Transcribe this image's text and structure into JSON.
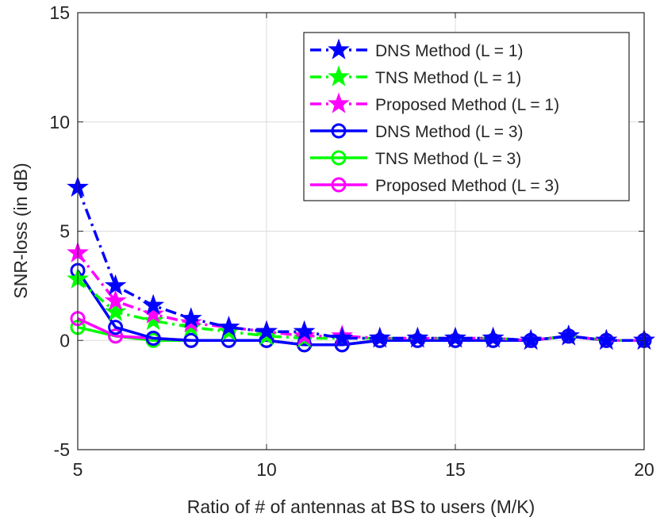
{
  "chart_data": {
    "type": "line",
    "xlabel": "Ratio of # of antennas at BS to users (M/K)",
    "ylabel": "SNR-loss (in dB)",
    "xlim": [
      5,
      20
    ],
    "ylim": [
      -5,
      15
    ],
    "xticks": [
      5,
      10,
      15,
      20
    ],
    "yticks": [
      -5,
      0,
      5,
      10,
      15
    ],
    "xtick_labels": [
      "5",
      "10",
      "15",
      "20"
    ],
    "ytick_labels": [
      "-5",
      "0",
      "5",
      "10",
      "15"
    ],
    "grid": true,
    "legend_position": "top-right",
    "x": [
      5,
      6,
      7,
      8,
      9,
      10,
      11,
      12,
      13,
      14,
      15,
      16,
      17,
      18,
      19,
      20
    ],
    "series": [
      {
        "name": "DNS Method (L = 1)",
        "color": "#0000ff",
        "line": "dashdot",
        "marker": "star",
        "values": [
          7.0,
          2.5,
          1.6,
          1.0,
          0.6,
          0.4,
          0.4,
          0.1,
          0.1,
          0.1,
          0.1,
          0.1,
          0.0,
          0.2,
          0.0,
          0.0
        ]
      },
      {
        "name": "TNS Method (L = 1)",
        "color": "#00ff00",
        "line": "dashdot",
        "marker": "star",
        "values": [
          2.8,
          1.3,
          0.9,
          0.6,
          0.4,
          0.2,
          0.1,
          0.1,
          0.1,
          0.1,
          0.1,
          0.1,
          0.0,
          0.2,
          0.0,
          0.0
        ]
      },
      {
        "name": "Proposed Method (L = 1)",
        "color": "#ff00ff",
        "line": "dashdot",
        "marker": "star",
        "values": [
          4.0,
          1.8,
          1.2,
          0.8,
          0.6,
          0.4,
          0.2,
          0.2,
          0.1,
          0.1,
          0.1,
          0.1,
          0.0,
          0.2,
          0.0,
          0.0
        ]
      },
      {
        "name": "DNS Method (L = 3)",
        "color": "#0000ff",
        "line": "solid",
        "marker": "circle",
        "values": [
          3.2,
          0.6,
          0.1,
          0.0,
          0.0,
          0.0,
          -0.2,
          -0.2,
          0.0,
          0.0,
          0.0,
          0.0,
          0.0,
          0.2,
          0.0,
          0.0
        ]
      },
      {
        "name": "TNS Method (L = 3)",
        "color": "#00ff00",
        "line": "solid",
        "marker": "circle",
        "values": [
          0.6,
          0.2,
          0.0,
          0.0,
          0.0,
          0.0,
          -0.2,
          -0.2,
          0.0,
          0.0,
          0.0,
          0.0,
          0.0,
          0.2,
          0.0,
          0.0
        ]
      },
      {
        "name": "Proposed Method (L = 3)",
        "color": "#ff00ff",
        "line": "solid",
        "marker": "circle",
        "values": [
          1.0,
          0.2,
          0.1,
          0.0,
          0.0,
          0.0,
          -0.2,
          -0.2,
          0.0,
          0.0,
          0.0,
          0.0,
          0.0,
          0.2,
          0.0,
          0.0
        ]
      }
    ]
  }
}
